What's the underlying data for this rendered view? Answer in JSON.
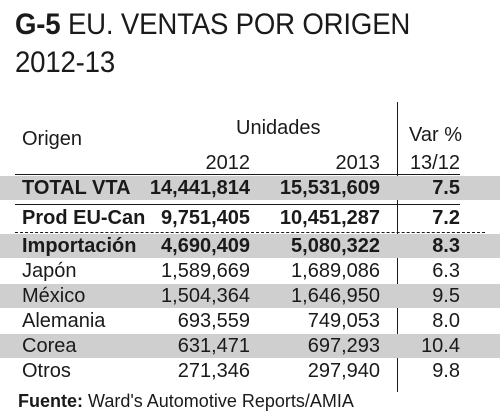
{
  "title": {
    "code": "G-5",
    "text": "EU. VENTAS POR ORIGEN",
    "years": "2012-13"
  },
  "header": {
    "origen": "Origen",
    "unidades": "Unidades",
    "var": "Var %",
    "y2012": "2012",
    "y2013": "2013",
    "yvar": "13/12"
  },
  "rows": [
    {
      "name": "TOTAL VTA",
      "v2012": "14,441,814",
      "v2013": "15,531,609",
      "var": "7.5"
    },
    {
      "name": "Prod EU-Can",
      "v2012": "9,751,405",
      "v2013": "10,451,287",
      "var": "7.2"
    },
    {
      "name": "Importación",
      "v2012": "4,690,409",
      "v2013": "5,080,322",
      "var": "8.3"
    },
    {
      "name": "Japón",
      "v2012": "1,589,669",
      "v2013": "1,689,086",
      "var": "6.3"
    },
    {
      "name": "México",
      "v2012": "1,504,364",
      "v2013": "1,646,950",
      "var": "9.5"
    },
    {
      "name": "Alemania",
      "v2012": "693,559",
      "v2013": "749,053",
      "var": "8.0"
    },
    {
      "name": "Corea",
      "v2012": "631,471",
      "v2013": "697,293",
      "var": "10.4"
    },
    {
      "name": "Otros",
      "v2012": "271,346",
      "v2013": "297,940",
      "var": "9.8"
    }
  ],
  "source": {
    "label": "Fuente:",
    "text": " Ward's Automotive Reports/AMIA"
  }
}
